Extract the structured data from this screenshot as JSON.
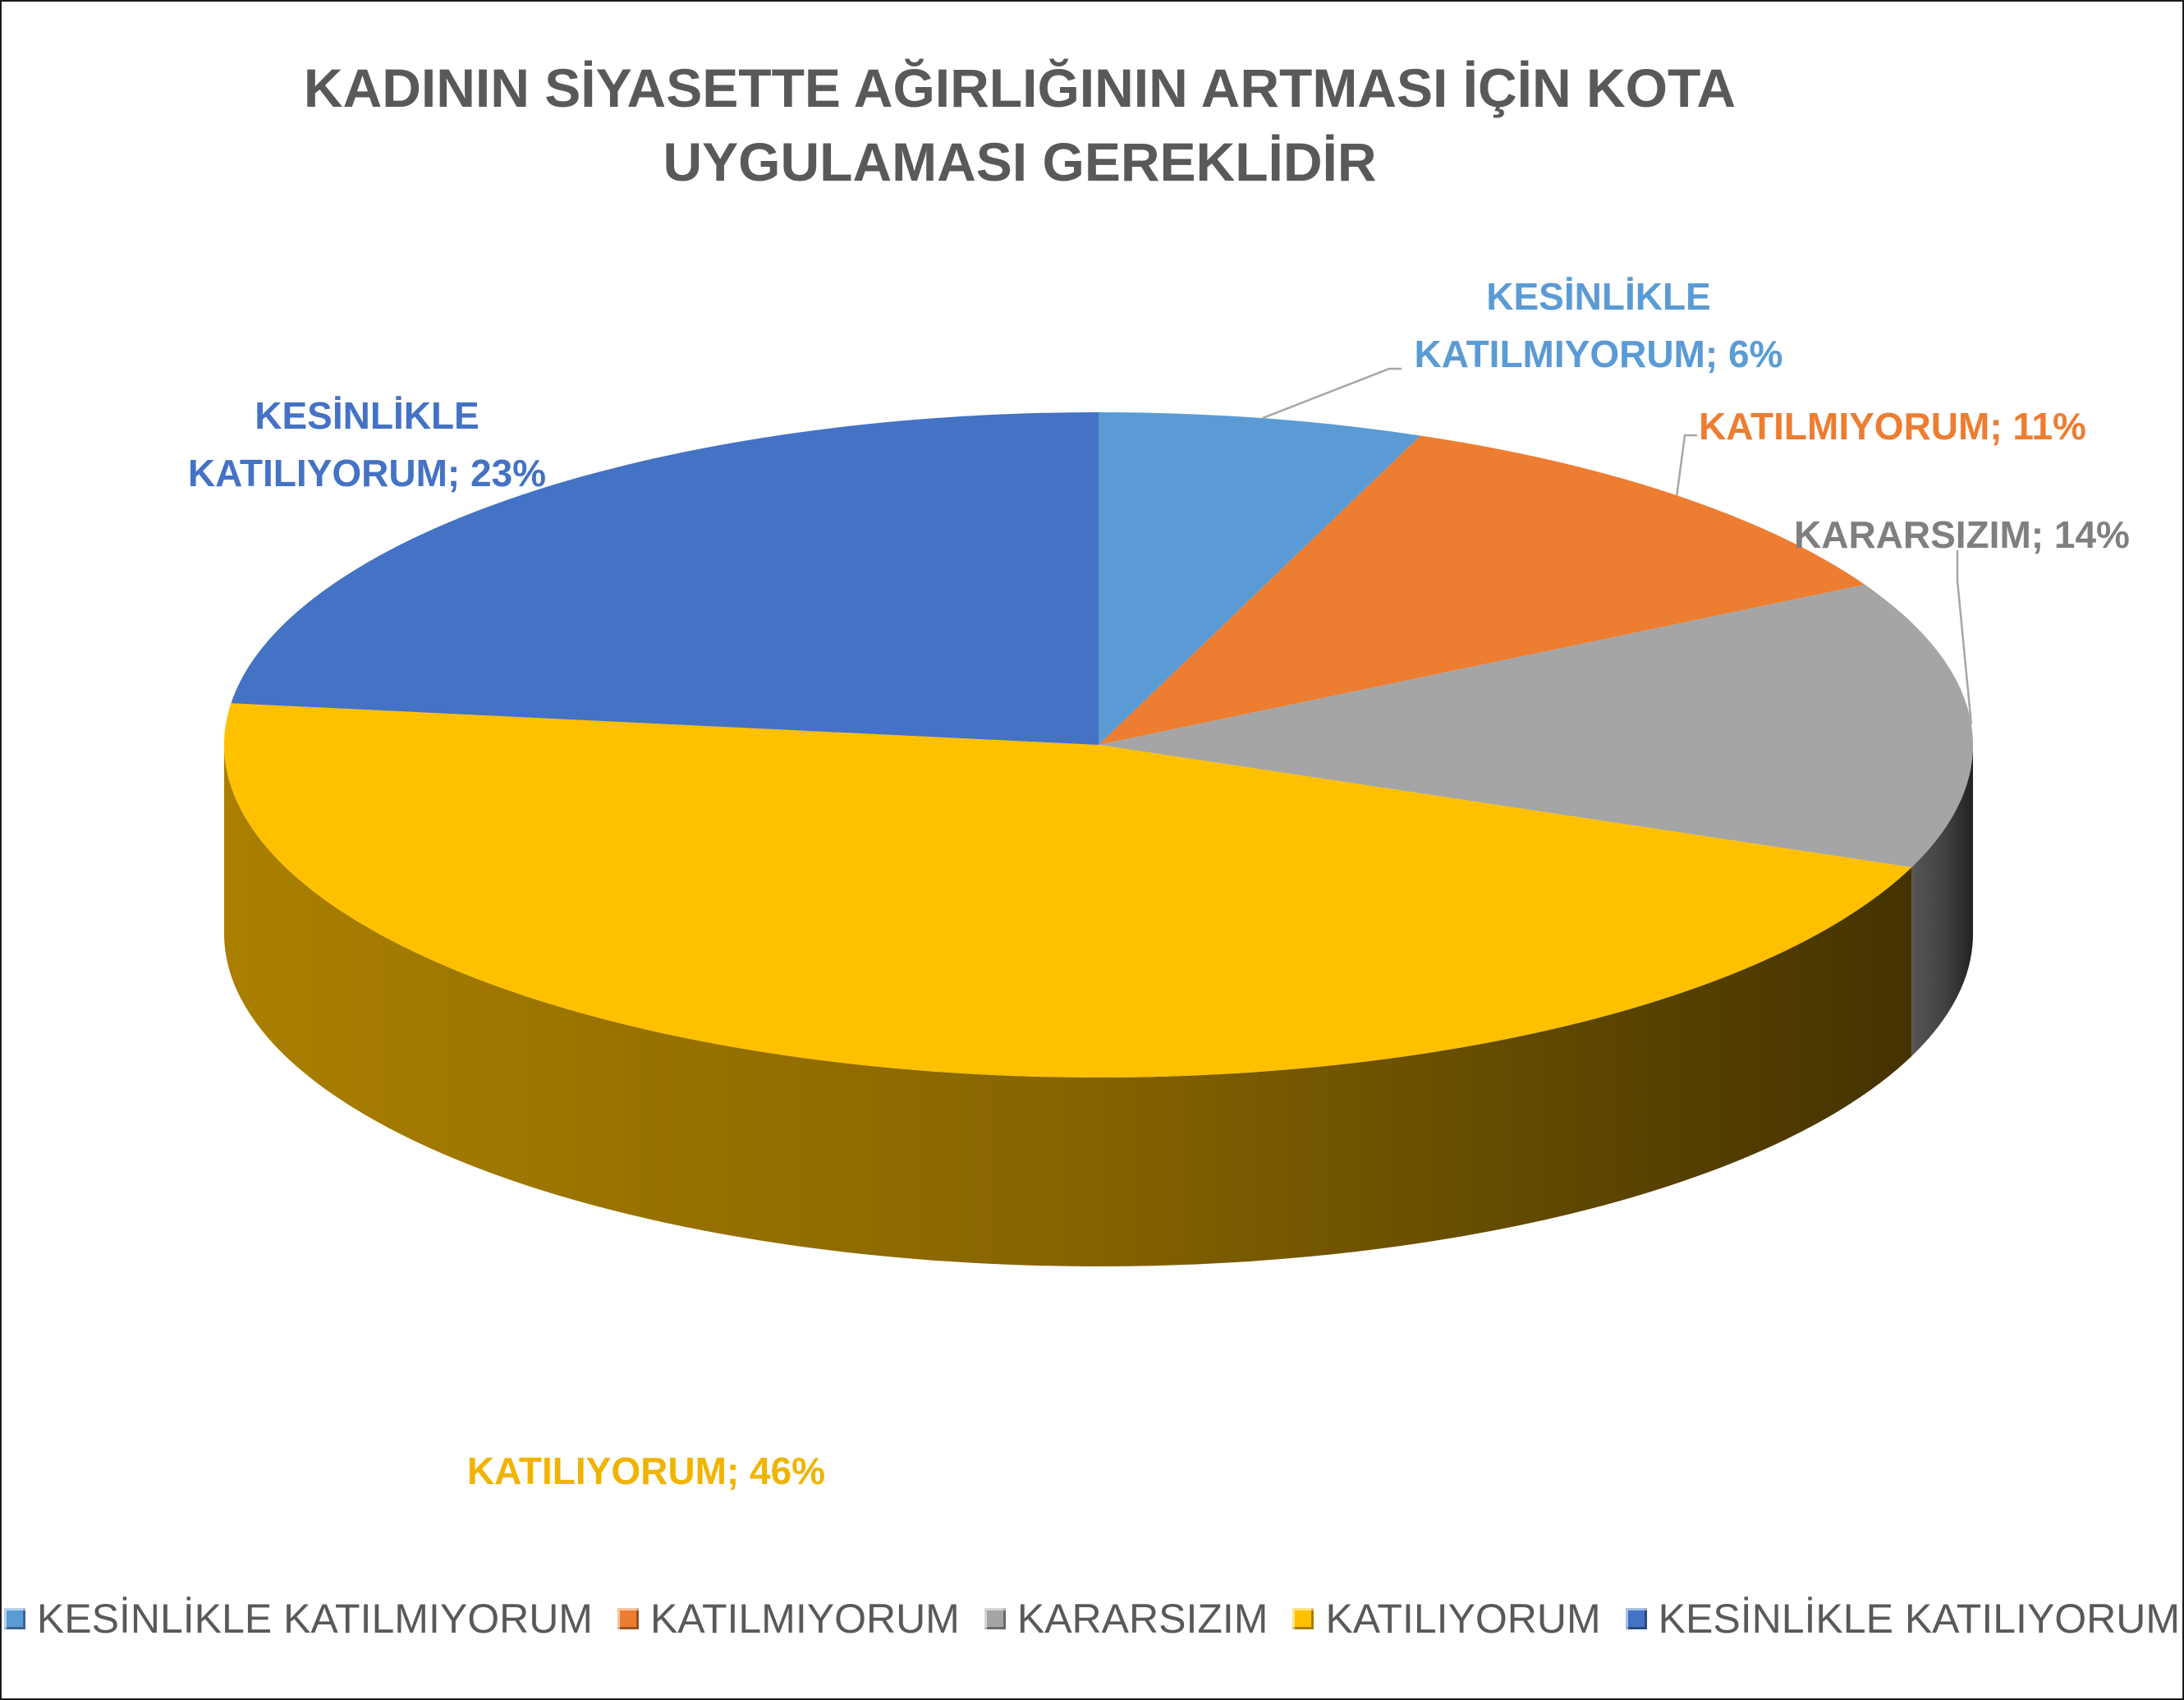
{
  "chart_data": {
    "type": "pie",
    "title": "KADININ SİYASETTE AĞIRLIĞININ ARTMASI İÇİN KOTA UYGULAMASI GEREKLİDİR",
    "title_lines": [
      "KADININ SİYASETTE AĞIRLIĞININ ARTMASI İÇİN KOTA",
      "UYGULAMASI GEREKLİDİR"
    ],
    "style": "3d",
    "legend_position": "bottom",
    "slices": [
      {
        "name": "KESİNLİKLE KATILMIYORUM",
        "value": 6,
        "label_lines": [
          "KESİNLİKLE",
          "KATILMIYORUM; 6%"
        ],
        "color": "#5B9BD5",
        "side": "#3f6d96"
      },
      {
        "name": "KATILMIYORUM",
        "value": 11,
        "label_lines": [
          "KATILMIYORUM; 11%"
        ],
        "color": "#ED7D31",
        "side": "#a85820"
      },
      {
        "name": "KARARSIZIM",
        "value": 14,
        "label_lines": [
          "KARARSIZIM; 14%"
        ],
        "color": "#A5A5A5",
        "side": "#5a5a5a"
      },
      {
        "name": "KATILIYORUM",
        "value": 46,
        "label_lines": [
          "KATILIYORUM; 46%"
        ],
        "color": "#FFC000",
        "side": "#b38600"
      },
      {
        "name": "KESİNLİKLE KATILIYORUM",
        "value": 23,
        "label_lines": [
          "KESİNLİKLE",
          "KATILIYORUM; 23%"
        ],
        "color": "#4472C4",
        "side": "#2d4d86"
      }
    ]
  }
}
